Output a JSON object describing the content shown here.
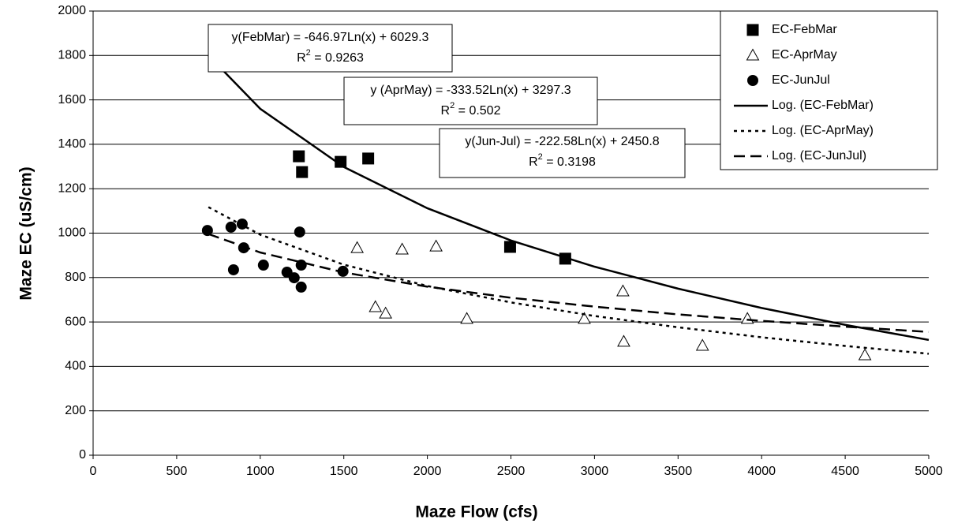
{
  "chart_data": {
    "type": "scatter",
    "x_label": "Maze Flow (cfs)",
    "y_label": "Maze EC (uS/cm)",
    "xlim": [
      0,
      5000
    ],
    "ylim": [
      0,
      2000
    ],
    "xticks": [
      0,
      500,
      1000,
      1500,
      2000,
      2500,
      3000,
      3500,
      4000,
      4500,
      5000
    ],
    "yticks": [
      0,
      200,
      400,
      600,
      800,
      1000,
      1200,
      1400,
      1600,
      1800,
      2000
    ],
    "grid": true,
    "legend": "upper right",
    "series": [
      {
        "name": "EC-FebMar",
        "color": "#000000",
        "marker": "square",
        "x": [
          1231,
          1250,
          1481,
          1646,
          2495,
          2825
        ],
        "values": [
          1346,
          1275,
          1321,
          1336,
          938,
          885
        ]
      },
      {
        "name": "EC-AprMay",
        "color": "#000000",
        "marker": "triangle",
        "x": [
          1580,
          1849,
          2052,
          1689,
          1750,
          2236,
          2939,
          3170,
          3175,
          3646,
          3915,
          4618
        ],
        "values": [
          934,
          927,
          941,
          668,
          639,
          615,
          615,
          739,
          512,
          494,
          615,
          451
        ]
      },
      {
        "name": "EC-JunJul",
        "color": "#000000",
        "marker": "circle",
        "x": [
          684,
          825,
          892,
          840,
          901,
          1019,
          1160,
          1203,
          1236,
          1245,
          1245,
          1495
        ],
        "values": [
          1012,
          1027,
          1041,
          835,
          934,
          856,
          824,
          799,
          1005,
          856,
          757,
          828
        ]
      },
      {
        "name": "Log. (EC-FebMar)",
        "color": "#000000",
        "line_style": "solid",
        "x": [
          690,
          1000,
          1500,
          2000,
          2500,
          3000,
          3500,
          4000,
          4500,
          5000
        ],
        "values": [
          1800,
          1560,
          1298,
          1112,
          967,
          849,
          750,
          663,
          587,
          519
        ]
      },
      {
        "name": "Log. (EC-AprMay)",
        "color": "#000000",
        "line_style": "dotted",
        "x": [
          690,
          1000,
          1500,
          2000,
          2500,
          3000,
          3500,
          4000,
          4500,
          5000
        ],
        "values": [
          1117,
          993,
          858,
          762,
          688,
          627,
          576,
          531,
          492,
          457
        ]
      },
      {
        "name": "Log. (EC-JunJul)",
        "color": "#000000",
        "line_style": "dashed",
        "x": [
          690,
          1000,
          1500,
          2000,
          2500,
          3000,
          3500,
          4000,
          4500,
          5000
        ],
        "values": [
          996,
          913,
          823,
          759,
          709,
          669,
          634,
          605,
          579,
          555
        ]
      }
    ],
    "annotations": [
      {
        "equation": "y(FebMar) = -646.97Ln(x) + 6029.3",
        "r2_label": "R",
        "r2_sup": "2",
        "r2_value": " = 0.9263"
      },
      {
        "equation": "y (AprMay) = -333.52Ln(x) + 3297.3",
        "r2_label": "R",
        "r2_sup": "2",
        "r2_value": " = 0.502"
      },
      {
        "equation": "y(Jun-Jul) = -222.58Ln(x) + 2450.8",
        "r2_label": "R",
        "r2_sup": "2",
        "r2_value": " = 0.3198"
      }
    ]
  }
}
